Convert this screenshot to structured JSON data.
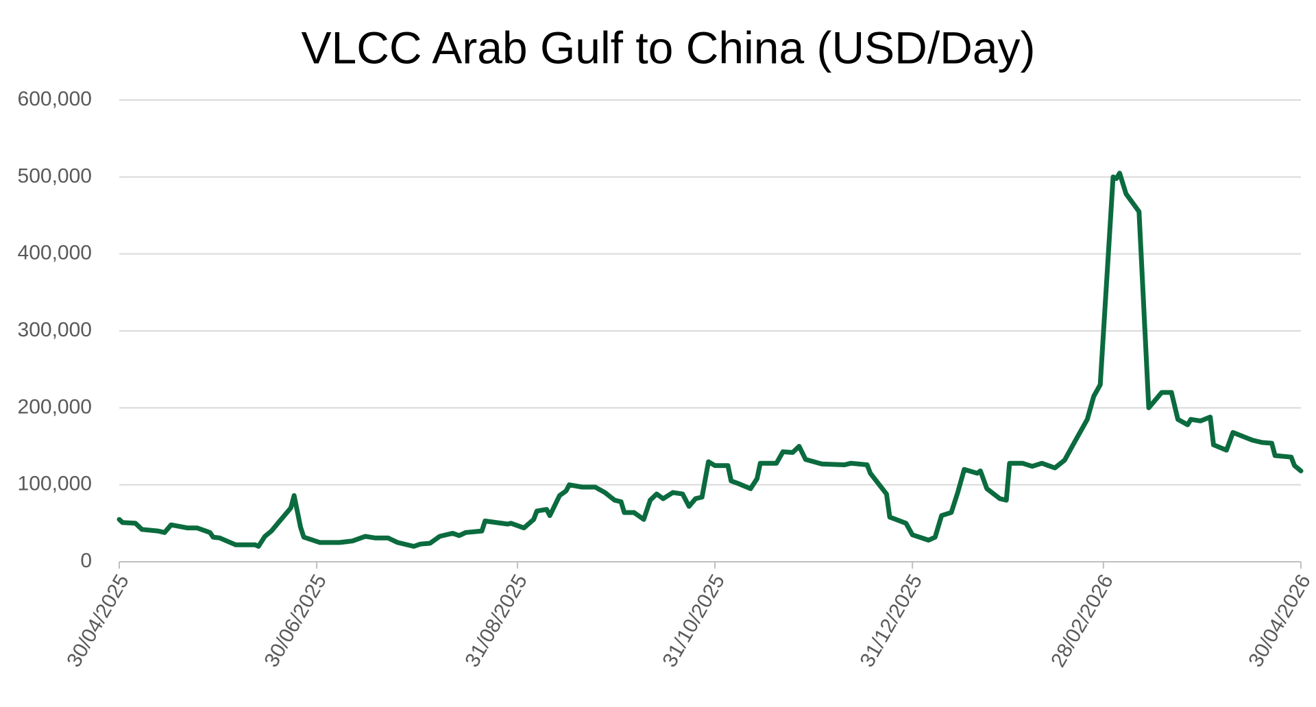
{
  "chart_data": {
    "type": "line",
    "title": "VLCC Arab Gulf to China (USD/Day)",
    "color": "#0b6b3f",
    "grid": true,
    "x": [
      "2025-04-30",
      "2025-05-01",
      "2025-05-05",
      "2025-05-07",
      "2025-05-12",
      "2025-05-14",
      "2025-05-16",
      "2025-05-21",
      "2025-05-24",
      "2025-05-28",
      "2025-05-29",
      "2025-05-31",
      "2025-06-05",
      "2025-06-11",
      "2025-06-12",
      "2025-06-14",
      "2025-06-16",
      "2025-06-18",
      "2025-06-22",
      "2025-06-23",
      "2025-06-25",
      "2025-06-26",
      "2025-07-01",
      "2025-07-07",
      "2025-07-11",
      "2025-07-15",
      "2025-07-18",
      "2025-07-22",
      "2025-07-25",
      "2025-07-30",
      "2025-08-01",
      "2025-08-04",
      "2025-08-07",
      "2025-08-11",
      "2025-08-13",
      "2025-08-15",
      "2025-08-20",
      "2025-08-21",
      "2025-08-28",
      "2025-08-29",
      "2025-09-02",
      "2025-09-05",
      "2025-09-06",
      "2025-09-09",
      "2025-09-10",
      "2025-09-13",
      "2025-09-15",
      "2025-09-16",
      "2025-09-20",
      "2025-09-24",
      "2025-09-27",
      "2025-09-30",
      "2025-10-02",
      "2025-10-03",
      "2025-10-06",
      "2025-10-09",
      "2025-10-11",
      "2025-10-13",
      "2025-10-15",
      "2025-10-18",
      "2025-10-21",
      "2025-10-23",
      "2025-10-25",
      "2025-10-27",
      "2025-10-29",
      "2025-10-31",
      "2025-11-04",
      "2025-11-05",
      "2025-11-07",
      "2025-11-11",
      "2025-11-13",
      "2025-11-14",
      "2025-11-19",
      "2025-11-21",
      "2025-11-24",
      "2025-11-26",
      "2025-11-28",
      "2025-12-03",
      "2025-12-10",
      "2025-12-12",
      "2025-12-17",
      "2025-12-18",
      "2025-12-23",
      "2025-12-24",
      "2025-12-29",
      "2025-12-31",
      "2026-01-05",
      "2026-01-07",
      "2026-01-09",
      "2026-01-12",
      "2026-01-14",
      "2026-01-16",
      "2026-01-20",
      "2026-01-21",
      "2026-01-23",
      "2026-01-27",
      "2026-01-29",
      "2026-01-30",
      "2026-02-03",
      "2026-02-06",
      "2026-02-09",
      "2026-02-13",
      "2026-02-16",
      "2026-02-19",
      "2026-02-23",
      "2026-02-25",
      "2026-02-27",
      "2026-03-03",
      "2026-03-04",
      "2026-03-05",
      "2026-03-07",
      "2026-03-11",
      "2026-03-14",
      "2026-03-18",
      "2026-03-21",
      "2026-03-23",
      "2026-03-26",
      "2026-03-27",
      "2026-03-30",
      "2026-04-02",
      "2026-04-03",
      "2026-04-07",
      "2026-04-09",
      "2026-04-15",
      "2026-04-18",
      "2026-04-21",
      "2026-04-22",
      "2026-04-27",
      "2026-04-28",
      "2026-04-30"
    ],
    "values": [
      55000,
      51000,
      50000,
      42000,
      40000,
      38000,
      48000,
      44000,
      44000,
      38000,
      32000,
      31000,
      22000,
      22000,
      20000,
      33000,
      40000,
      50000,
      70000,
      86000,
      45000,
      32000,
      25000,
      25000,
      27000,
      33000,
      31000,
      31000,
      25000,
      20000,
      23000,
      24000,
      33000,
      37000,
      34000,
      38000,
      40000,
      53000,
      49000,
      50000,
      44000,
      55000,
      66000,
      68000,
      60000,
      86000,
      92000,
      100000,
      97000,
      97000,
      90000,
      80000,
      78000,
      64000,
      64000,
      55000,
      80000,
      88000,
      82000,
      90000,
      88000,
      72000,
      82000,
      84000,
      130000,
      125000,
      125000,
      105000,
      102000,
      95000,
      108000,
      128000,
      128000,
      143000,
      142000,
      150000,
      133000,
      127000,
      126000,
      128000,
      126000,
      115000,
      88000,
      58000,
      50000,
      35000,
      28000,
      32000,
      60000,
      64000,
      90000,
      120000,
      115000,
      118000,
      95000,
      82000,
      80000,
      128000,
      128000,
      124000,
      128000,
      122000,
      132000,
      155000,
      185000,
      215000,
      230000,
      500000,
      498000,
      505000,
      478000,
      455000,
      200000,
      220000,
      220000,
      185000,
      178000,
      185000,
      183000,
      188000,
      152000,
      145000,
      168000,
      158000,
      155000,
      154000,
      138000,
      136000,
      125000,
      118000
    ],
    "xlim": [
      "2025-04-30",
      "2026-04-30"
    ],
    "xticks": [
      {
        "value": "2025-04-30",
        "label": "30/04/2025"
      },
      {
        "value": "2025-06-30",
        "label": "30/06/2025"
      },
      {
        "value": "2025-08-31",
        "label": "31/08/2025"
      },
      {
        "value": "2025-10-31",
        "label": "31/10/2025"
      },
      {
        "value": "2025-12-31",
        "label": "31/12/2025"
      },
      {
        "value": "2026-02-28",
        "label": "28/02/2026"
      },
      {
        "value": "2026-04-30",
        "label": "30/04/2026"
      }
    ],
    "ylim": [
      0,
      600000
    ],
    "yticks": [
      0,
      {
        "value": 100000,
        "label": "100,000"
      },
      {
        "value": 200000,
        "label": "200,000"
      },
      {
        "value": 300000,
        "label": "300,000"
      },
      {
        "value": 400000,
        "label": "400,000"
      },
      {
        "value": 500000,
        "label": "500,000"
      },
      {
        "value": 600000,
        "label": "600,000"
      }
    ]
  }
}
